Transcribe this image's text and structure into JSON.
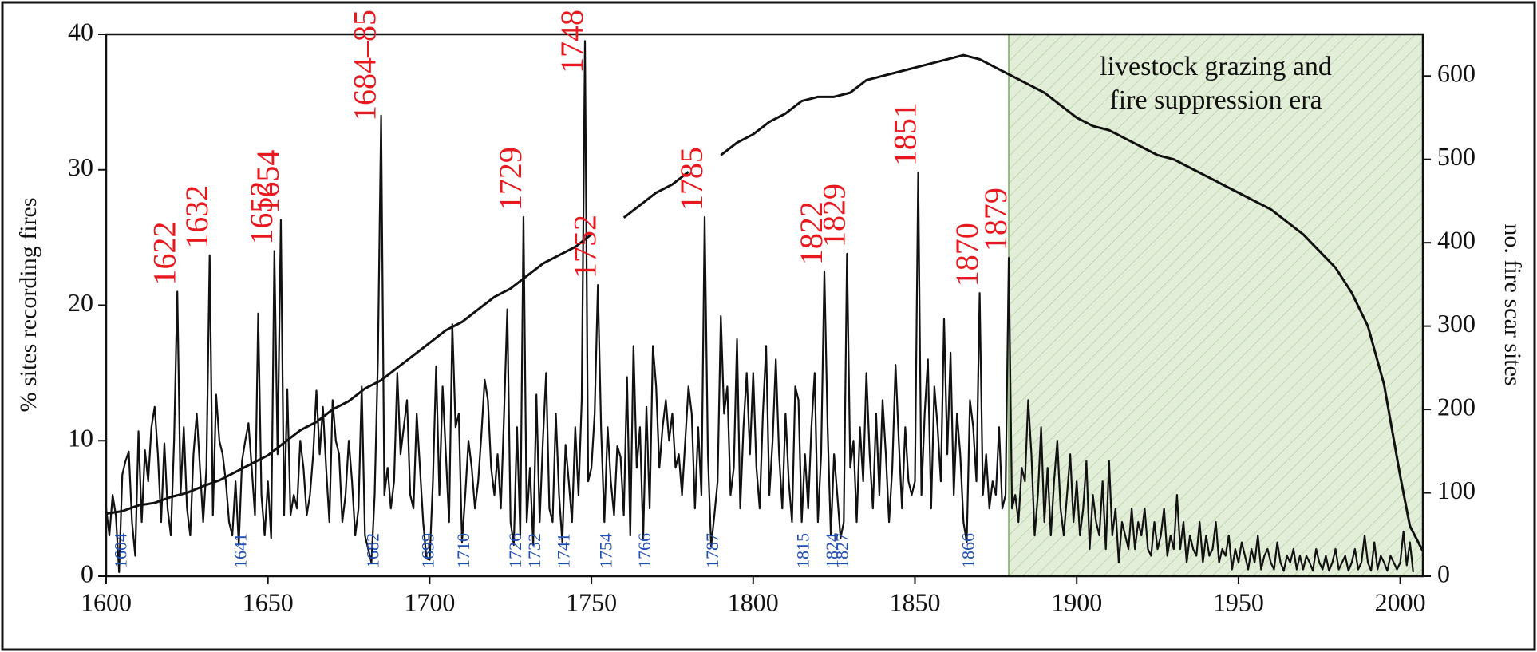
{
  "chart_data": {
    "type": "line",
    "xlim": [
      1600,
      2007
    ],
    "xticks": [
      1600,
      1650,
      1700,
      1750,
      1800,
      1850,
      1900,
      1950,
      2000
    ],
    "ylim": [
      0,
      40
    ],
    "yticks": [
      0,
      10,
      20,
      30,
      40
    ],
    "y2lim": [
      0,
      650
    ],
    "y2ticks": [
      0,
      100,
      200,
      300,
      400,
      500,
      600
    ],
    "ylabel": "% sites recording fires",
    "y2label": "no. fire scar sites",
    "series": [
      {
        "color": "#111111",
        "x": [
          1600,
          1601,
          1602,
          1603,
          1604,
          1605,
          1606,
          1607,
          1608,
          1609,
          1610,
          1611,
          1612,
          1613,
          1614,
          1615,
          1616,
          1617,
          1618,
          1619,
          1620,
          1621,
          1622,
          1623,
          1624,
          1625,
          1626,
          1627,
          1628,
          1629,
          1630,
          1631,
          1632,
          1633,
          1634,
          1635,
          1636,
          1637,
          1638,
          1639,
          1640,
          1641,
          1642,
          1643,
          1644,
          1645,
          1646,
          1647,
          1648,
          1649,
          1650,
          1651,
          1652,
          1653,
          1654,
          1655,
          1656,
          1657,
          1658,
          1659,
          1660,
          1661,
          1662,
          1663,
          1664,
          1665,
          1666,
          1667,
          1668,
          1669,
          1670,
          1671,
          1672,
          1673,
          1674,
          1675,
          1676,
          1677,
          1678,
          1679,
          1680,
          1681,
          1682,
          1683,
          1684,
          1685,
          1686,
          1687,
          1688,
          1689,
          1690,
          1691,
          1692,
          1693,
          1694,
          1695,
          1696,
          1697,
          1698,
          1699,
          1700,
          1701,
          1702,
          1703,
          1704,
          1705,
          1706,
          1707,
          1708,
          1709,
          1710,
          1711,
          1712,
          1713,
          1714,
          1715,
          1716,
          1717,
          1718,
          1719,
          1720,
          1721,
          1722,
          1723,
          1724,
          1725,
          1726,
          1727,
          1728,
          1729,
          1730,
          1731,
          1732,
          1733,
          1734,
          1735,
          1736,
          1737,
          1738,
          1739,
          1740,
          1741,
          1742,
          1743,
          1744,
          1745,
          1746,
          1747,
          1748,
          1749,
          1750,
          1751,
          1752,
          1753,
          1754,
          1755,
          1756,
          1757,
          1758,
          1759,
          1760,
          1761,
          1762,
          1763,
          1764,
          1765,
          1766,
          1767,
          1768,
          1769,
          1770,
          1771,
          1772,
          1773,
          1774,
          1775,
          1776,
          1777,
          1778,
          1779,
          1780,
          1781,
          1782,
          1783,
          1784,
          1785,
          1786,
          1787,
          1788,
          1789,
          1790,
          1791,
          1792,
          1793,
          1794,
          1795,
          1796,
          1797,
          1798,
          1799,
          1800,
          1801,
          1802,
          1803,
          1804,
          1805,
          1806,
          1807,
          1808,
          1809,
          1810,
          1811,
          1812,
          1813,
          1814,
          1815,
          1816,
          1817,
          1818,
          1819,
          1820,
          1821,
          1822,
          1823,
          1824,
          1825,
          1826,
          1827,
          1828,
          1829,
          1830,
          1831,
          1832,
          1833,
          1834,
          1835,
          1836,
          1837,
          1838,
          1839,
          1840,
          1841,
          1842,
          1843,
          1844,
          1845,
          1846,
          1847,
          1848,
          1849,
          1850,
          1851,
          1852,
          1853,
          1854,
          1855,
          1856,
          1857,
          1858,
          1859,
          1860,
          1861,
          1862,
          1863,
          1864,
          1865,
          1866,
          1867,
          1868,
          1869,
          1870,
          1871,
          1872,
          1873,
          1874,
          1875,
          1876,
          1877,
          1878,
          1879,
          1880,
          1881,
          1882,
          1883,
          1884,
          1885,
          1886,
          1887,
          1888,
          1889,
          1890,
          1891,
          1892,
          1893,
          1894,
          1895,
          1896,
          1897,
          1898,
          1899,
          1900,
          1901,
          1902,
          1903,
          1904,
          1905,
          1906,
          1907,
          1908,
          1909,
          1910,
          1911,
          1912,
          1913,
          1914,
          1915,
          1916,
          1917,
          1918,
          1919,
          1920,
          1921,
          1922,
          1923,
          1924,
          1925,
          1926,
          1927,
          1928,
          1929,
          1930,
          1931,
          1932,
          1933,
          1934,
          1935,
          1936,
          1937,
          1938,
          1939,
          1940,
          1941,
          1942,
          1943,
          1944,
          1945,
          1946,
          1947,
          1948,
          1949,
          1950,
          1951,
          1952,
          1953,
          1954,
          1955,
          1956,
          1957,
          1958,
          1959,
          1960,
          1961,
          1962,
          1963,
          1964,
          1965,
          1966,
          1967,
          1968,
          1969,
          1970,
          1971,
          1972,
          1973,
          1974,
          1975,
          1976,
          1977,
          1978,
          1979,
          1980,
          1981,
          1982,
          1983,
          1984,
          1985,
          1986,
          1987,
          1988,
          1989,
          1990,
          1991,
          1992,
          1993,
          1994,
          1995,
          1996,
          1997,
          1998,
          1999,
          2000,
          2001,
          2002,
          2003,
          2004
        ],
        "values": [
          5,
          3,
          6,
          4.5,
          0.3,
          7.5,
          8.5,
          9.2,
          4,
          1.5,
          10.7,
          4,
          9.3,
          7,
          11,
          12.5,
          9,
          4,
          9.8,
          5,
          3,
          10,
          21,
          6,
          11,
          5,
          3,
          9,
          12,
          8,
          4,
          8,
          23.7,
          4.5,
          13.4,
          10,
          9,
          7,
          4,
          3,
          7,
          2.3,
          8.5,
          10,
          11.3,
          8,
          4.5,
          19.4,
          6,
          3,
          7,
          2.8,
          24,
          9,
          26.3,
          4.5,
          13.8,
          4.5,
          6,
          5,
          10,
          8,
          4.5,
          6,
          9,
          13.7,
          9,
          12.5,
          8,
          4,
          13,
          10,
          9,
          4,
          6,
          10,
          7,
          3,
          5,
          14,
          3,
          2,
          1,
          6,
          16,
          34,
          6,
          8,
          5,
          7,
          15,
          9,
          11,
          13,
          6,
          5,
          12,
          8,
          4,
          1.3,
          1.2,
          7,
          15.5,
          6,
          14,
          9,
          4,
          18.6,
          11,
          12,
          2.5,
          6,
          10,
          8,
          5,
          7,
          10.5,
          14.5,
          13,
          8,
          6,
          9,
          5,
          12,
          19.7,
          4,
          2.3,
          11,
          3,
          26.5,
          4,
          8,
          2.3,
          13.4,
          4,
          10,
          15,
          5,
          4,
          12,
          6,
          2.5,
          9.7,
          7,
          4,
          11,
          6,
          13,
          39.5,
          7,
          8,
          12,
          21.5,
          10.8,
          4,
          11,
          7,
          4.5,
          9.6,
          8.8,
          4.5,
          14.7,
          3,
          17,
          8,
          11,
          2.8,
          12.5,
          5,
          17,
          14,
          8,
          11,
          13,
          10,
          12,
          8,
          9,
          6,
          10,
          14,
          12,
          5,
          11,
          6,
          26.5,
          9,
          2.2,
          4.5,
          7,
          19.2,
          12,
          14,
          6,
          8,
          17.5,
          5,
          11,
          15,
          9,
          15,
          8,
          5,
          12,
          17,
          6,
          10,
          16,
          9,
          5,
          12,
          7,
          4,
          14,
          13,
          4,
          9,
          5,
          11,
          15,
          4,
          9,
          22.5,
          11,
          3,
          9,
          6,
          2.8,
          4,
          23.8,
          8,
          10,
          4,
          11,
          7,
          15,
          9,
          5,
          12,
          6,
          13,
          9,
          4,
          8,
          15.6,
          10,
          5,
          11,
          7,
          6,
          7,
          29.8,
          6,
          12,
          16,
          5,
          14,
          11,
          7,
          19,
          9,
          16.5,
          6,
          12,
          9,
          4,
          2.5,
          13,
          11,
          7,
          20.9,
          6,
          9,
          5,
          7,
          6,
          11,
          5,
          6,
          23.5,
          5,
          6,
          4,
          8,
          7,
          13,
          9,
          3,
          6,
          11,
          4,
          8,
          3,
          7,
          10,
          5,
          3,
          6,
          9,
          4,
          7,
          3,
          5,
          8.5,
          2,
          6,
          4,
          3,
          7,
          2,
          8.5,
          3,
          5,
          1,
          4,
          3,
          2,
          5,
          2,
          4,
          3,
          5,
          2,
          1.5,
          4,
          2,
          3,
          5,
          1.5,
          3,
          2,
          6,
          2,
          4,
          1,
          3,
          2,
          1.5,
          4,
          1,
          3,
          1.5,
          2,
          4,
          1,
          2,
          1.5,
          3,
          0.5,
          2,
          1,
          2.5,
          1.5,
          0.5,
          2,
          1,
          3,
          0.5,
          1.5,
          2,
          1,
          0.5,
          2.5,
          1,
          0.4,
          1.5,
          1,
          2,
          0.5,
          1.5,
          0.5,
          1.5,
          1,
          0.4,
          2,
          1,
          0.5,
          1.5,
          0.4,
          1,
          2,
          0.5,
          1,
          1.5,
          0.4,
          1,
          2,
          0.5,
          1,
          3,
          1,
          0.4,
          2.5,
          0.5,
          1.5,
          1,
          0.4,
          1.5,
          1,
          0.5,
          1,
          3.3,
          0.8,
          2.5,
          0.3
        ]
      },
      {
        "color": "#111111",
        "axis": "y2",
        "x": [
          1600,
          1605,
          1610,
          1615,
          1620,
          1625,
          1630,
          1635,
          1640,
          1645,
          1650,
          1655,
          1660,
          1665,
          1670,
          1675,
          1680,
          1685,
          1690,
          1695,
          1700,
          1705,
          1710,
          1715,
          1720,
          1725,
          1730,
          1735,
          1740,
          1745,
          1750,
          1755,
          1760,
          1765,
          1770,
          1775,
          1780,
          1785,
          1790,
          1795,
          1800,
          1805,
          1810,
          1815,
          1820,
          1825,
          1830,
          1835,
          1840,
          1845,
          1850,
          1855,
          1860,
          1865,
          1870,
          1875,
          1880,
          1885,
          1890,
          1895,
          1900,
          1905,
          1910,
          1915,
          1920,
          1925,
          1930,
          1935,
          1940,
          1945,
          1950,
          1955,
          1960,
          1965,
          1970,
          1975,
          1980,
          1985,
          1990,
          1995,
          2000,
          2003,
          2007
        ],
        "values": [
          75,
          78,
          85,
          88,
          95,
          100,
          108,
          115,
          125,
          135,
          145,
          160,
          175,
          185,
          200,
          210,
          225,
          235,
          250,
          265,
          280,
          295,
          305,
          320,
          335,
          345,
          360,
          375,
          385,
          395,
          410,
          null,
          430,
          445,
          460,
          470,
          485,
          null,
          505,
          520,
          530,
          545,
          555,
          570,
          575,
          575,
          580,
          595,
          600,
          605,
          610,
          615,
          620,
          625,
          620,
          610,
          600,
          590,
          580,
          565,
          550,
          540,
          535,
          525,
          515,
          505,
          500,
          490,
          480,
          470,
          460,
          450,
          440,
          425,
          410,
          390,
          370,
          340,
          300,
          230,
          120,
          60,
          30
        ]
      }
    ],
    "annotations": {
      "fire_years": [
        "1622",
        "1632",
        "1652",
        "1654",
        "1684–85",
        "1729",
        "1748",
        "1752",
        "1785",
        "1822",
        "1829",
        "1851",
        "1870",
        "1879"
      ],
      "fire_years_color": "#e8191e",
      "low_years": [
        "1604",
        "1641",
        "1682",
        "1699",
        "1710",
        "1726",
        "1732",
        "1741",
        "1754",
        "1766",
        "1787",
        "1815",
        "1824",
        "1827",
        "1866"
      ],
      "low_years_color": "#1f4fb4"
    },
    "shaded_region": {
      "x_start": 1879,
      "text": [
        "livestock grazing and",
        "fire suppression era"
      ],
      "color": "#e3eed9",
      "edge_color": "#8dbb7a"
    }
  }
}
